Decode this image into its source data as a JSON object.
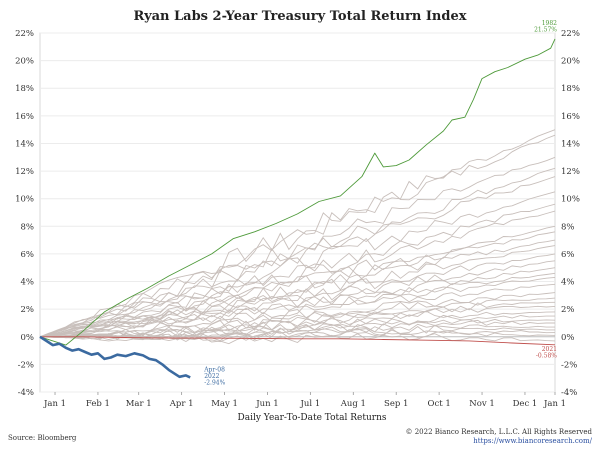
{
  "chart_data": {
    "type": "line",
    "title": "Ryan Labs 2-Year Treasury Total Return Index",
    "xlabel": "Daily Year-To-Date Total Returns",
    "ylabel": "",
    "x_ticks": [
      "Jan 1",
      "Feb 1",
      "Mar 1",
      "Apr 1",
      "May 1",
      "Jun 1",
      "Jul 1",
      "Aug 1",
      "Sep 1",
      "Oct 1",
      "Nov 1",
      "Dec 1",
      "Jan 1"
    ],
    "y_ticks": [
      "-4%",
      "-2%",
      "0%",
      "2%",
      "4%",
      "6%",
      "8%",
      "10%",
      "12%",
      "14%",
      "16%",
      "18%",
      "20%",
      "22%"
    ],
    "ylim": [
      -4,
      22
    ],
    "grid": "horizontal",
    "highlight_series": [
      {
        "label_lines": [
          "1982",
          "21.57%"
        ],
        "color": "#4e9a3a",
        "points": [
          [
            0,
            0
          ],
          [
            0.3,
            -0.3
          ],
          [
            0.6,
            -0.6
          ],
          [
            1.0,
            0.4
          ],
          [
            1.5,
            1.8
          ],
          [
            2.0,
            2.7
          ],
          [
            2.5,
            3.5
          ],
          [
            3.0,
            4.4
          ],
          [
            3.5,
            5.2
          ],
          [
            4.0,
            6.0
          ],
          [
            4.5,
            7.1
          ],
          [
            5.0,
            7.6
          ],
          [
            5.5,
            8.2
          ],
          [
            6.0,
            8.9
          ],
          [
            6.5,
            9.8
          ],
          [
            7.0,
            10.2
          ],
          [
            7.5,
            11.6
          ],
          [
            7.8,
            13.3
          ],
          [
            8.0,
            12.3
          ],
          [
            8.3,
            12.4
          ],
          [
            8.6,
            12.8
          ],
          [
            9.0,
            13.9
          ],
          [
            9.4,
            14.9
          ],
          [
            9.6,
            15.7
          ],
          [
            9.9,
            15.9
          ],
          [
            10.1,
            17.2
          ],
          [
            10.3,
            18.7
          ],
          [
            10.6,
            19.2
          ],
          [
            10.9,
            19.5
          ],
          [
            11.3,
            20.1
          ],
          [
            11.6,
            20.4
          ],
          [
            11.9,
            20.9
          ],
          [
            12.0,
            21.57
          ]
        ]
      },
      {
        "label_lines": [
          "2021",
          "-0.58%"
        ],
        "color": "#c0504d",
        "points": [
          [
            0,
            0
          ],
          [
            1,
            0
          ],
          [
            2,
            -0.05
          ],
          [
            3,
            -0.1
          ],
          [
            4,
            -0.1
          ],
          [
            5,
            -0.12
          ],
          [
            6,
            -0.15
          ],
          [
            7,
            -0.15
          ],
          [
            8,
            -0.2
          ],
          [
            9,
            -0.25
          ],
          [
            10,
            -0.3
          ],
          [
            11,
            -0.45
          ],
          [
            12,
            -0.58
          ]
        ]
      },
      {
        "label_lines": [
          "Apr-08",
          "2022",
          "-2.94%"
        ],
        "color": "#3b6aa0",
        "points": [
          [
            0,
            0
          ],
          [
            0.15,
            -0.3
          ],
          [
            0.3,
            -0.6
          ],
          [
            0.45,
            -0.5
          ],
          [
            0.6,
            -0.8
          ],
          [
            0.75,
            -1.0
          ],
          [
            0.9,
            -0.9
          ],
          [
            1.05,
            -1.1
          ],
          [
            1.2,
            -1.3
          ],
          [
            1.35,
            -1.2
          ],
          [
            1.5,
            -1.6
          ],
          [
            1.65,
            -1.5
          ],
          [
            1.8,
            -1.3
          ],
          [
            2.0,
            -1.4
          ],
          [
            2.2,
            -1.2
          ],
          [
            2.4,
            -1.35
          ],
          [
            2.55,
            -1.6
          ],
          [
            2.7,
            -1.7
          ],
          [
            2.85,
            -2.0
          ],
          [
            3.0,
            -2.4
          ],
          [
            3.15,
            -2.7
          ],
          [
            3.25,
            -2.9
          ],
          [
            3.4,
            -2.8
          ],
          [
            3.5,
            -2.94
          ]
        ]
      }
    ],
    "background_series": [
      {
        "color": "#c8bfbb",
        "finals": [
          15.0,
          14.6,
          13.0,
          12.2,
          11.6,
          10.5,
          9.6,
          9.1,
          8.0,
          7.6,
          7.0,
          6.6,
          6.0,
          5.5,
          5.0,
          4.6,
          4.3,
          3.8,
          3.2,
          2.8,
          2.5,
          2.2,
          1.8,
          1.5,
          1.2,
          1.0,
          0.7,
          0.5,
          0.3,
          0.1,
          -0.3
        ]
      }
    ]
  },
  "footer": {
    "source": "Source: Bloomberg",
    "copyright": "© 2022 Bianco Research, L.L.C. All Rights Reserved",
    "url": "https://www.biancoresearch.com/"
  }
}
